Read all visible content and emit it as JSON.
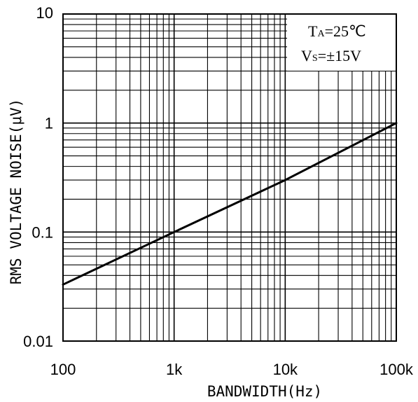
{
  "chart_data": {
    "type": "line",
    "xlabel": "BANDWIDTH(Hz)",
    "ylabel": "RMS VOLTAGE NOISE(μV)",
    "x_scale": "log",
    "y_scale": "log",
    "xlim": [
      100,
      100000
    ],
    "ylim": [
      0.01,
      10
    ],
    "x_ticks": [
      100,
      1000,
      10000,
      100000
    ],
    "x_tick_labels": [
      "100",
      "1k",
      "10k",
      "100k"
    ],
    "y_ticks": [
      0.01,
      0.1,
      1,
      10
    ],
    "y_tick_labels": [
      "0.01",
      "0.1",
      "1",
      "10"
    ],
    "grid": true,
    "series": [
      {
        "x": [
          100,
          1000,
          10000,
          100000
        ],
        "y": [
          0.033,
          0.1,
          0.3,
          1.0
        ]
      }
    ],
    "annotation": {
      "line1_main": "T",
      "line1_sub": "A",
      "line1_rest": "=25℃",
      "line2_main": "V",
      "line2_sub": "S",
      "line2_rest": "=±15V",
      "position": "top-right"
    },
    "colors": {
      "line": "#000000",
      "grid": "#000000",
      "background": "#ffffff"
    }
  }
}
